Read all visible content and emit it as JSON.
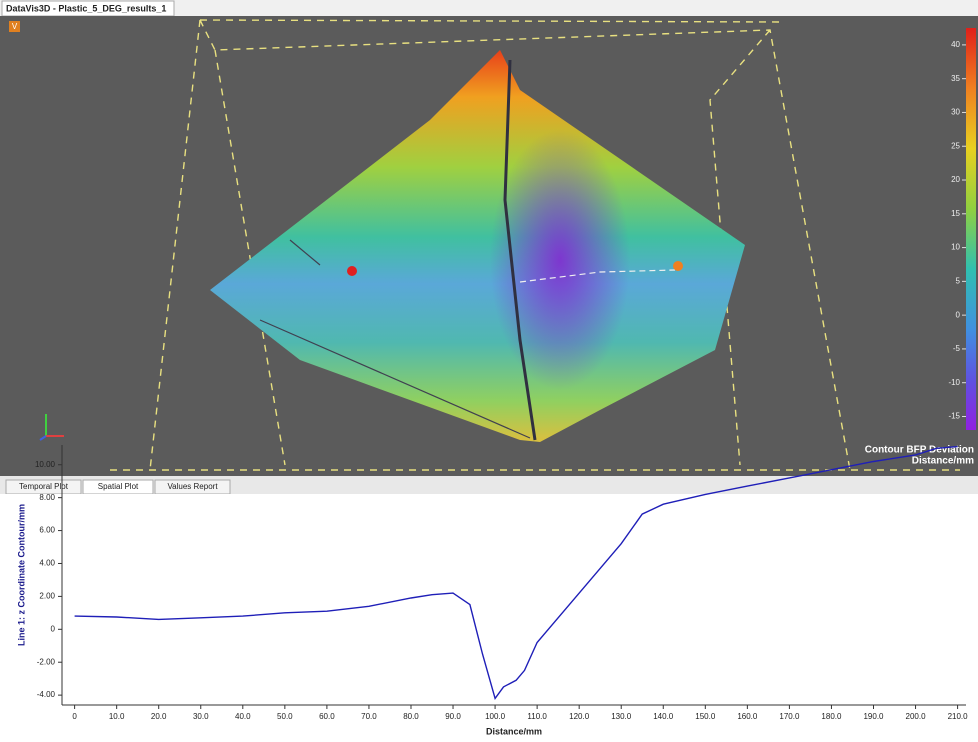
{
  "window": {
    "title": "DataVis3D - Plastic_5_DEG_results_1"
  },
  "viewport": {
    "badge": "V",
    "colorbar": {
      "title": [
        "Contour BFP Deviation",
        "Distance/mm"
      ],
      "lim": [
        -17,
        42.5
      ],
      "ticks": [
        40,
        35,
        30,
        25,
        20,
        15,
        10,
        5,
        0,
        -5,
        -10,
        -15
      ]
    }
  },
  "tabs": [
    "Temporal Plot",
    "Spatial Plot",
    "Values Report"
  ],
  "chart_data": {
    "type": "line",
    "xlabel": "Distance/mm",
    "ylabel": "Line 1: z Coordinate Contour/mm",
    "x": [
      0,
      10,
      20,
      30,
      40,
      50,
      60,
      70,
      80,
      85,
      90,
      94,
      97,
      100,
      102,
      105,
      107,
      110,
      120,
      130,
      135,
      140,
      150,
      160,
      170,
      180,
      190,
      200,
      205,
      210
    ],
    "values": [
      0.8,
      0.75,
      0.6,
      0.7,
      0.8,
      1.0,
      1.1,
      1.4,
      1.9,
      2.1,
      2.2,
      1.5,
      -1.5,
      -4.2,
      -3.5,
      -3.1,
      -2.5,
      -0.8,
      2.2,
      5.2,
      7.0,
      7.6,
      8.2,
      8.7,
      9.2,
      9.7,
      10.2,
      10.6,
      11.0,
      11.1
    ],
    "color": "#1f1fb8",
    "xlim": [
      -3,
      212
    ],
    "ylim": [
      -4.6,
      11.2
    ],
    "xticks": [
      0,
      {
        "value": 10,
        "label": "10.0"
      },
      {
        "value": 20,
        "label": "20.0"
      },
      {
        "value": 30,
        "label": "30.0"
      },
      {
        "value": 40,
        "label": "40.0"
      },
      {
        "value": 50,
        "label": "50.0"
      },
      {
        "value": 60,
        "label": "60.0"
      },
      {
        "value": 70,
        "label": "70.0"
      },
      {
        "value": 80,
        "label": "80.0"
      },
      {
        "value": 90,
        "label": "90.0"
      },
      {
        "value": 100,
        "label": "100.0"
      },
      {
        "value": 110,
        "label": "110.0"
      },
      {
        "value": 120,
        "label": "120.0"
      },
      {
        "value": 130,
        "label": "130.0"
      },
      {
        "value": 140,
        "label": "140.0"
      },
      {
        "value": 150,
        "label": "150.0"
      },
      {
        "value": 160,
        "label": "160.0"
      },
      {
        "value": 170,
        "label": "170.0"
      },
      {
        "value": 180,
        "label": "180.0"
      },
      {
        "value": 190,
        "label": "190.0"
      },
      {
        "value": 200,
        "label": "200.0"
      },
      {
        "value": 210,
        "label": "210.0"
      }
    ],
    "yticks": [
      {
        "value": 10,
        "label": "10.00"
      },
      {
        "value": 8,
        "label": "8.00"
      },
      {
        "value": 6,
        "label": "6.00"
      },
      {
        "value": 4,
        "label": "4.00"
      },
      {
        "value": 2,
        "label": "2.00"
      },
      0,
      {
        "value": -2,
        "label": "-2.00"
      },
      {
        "value": -4,
        "label": "-4.00"
      }
    ]
  }
}
